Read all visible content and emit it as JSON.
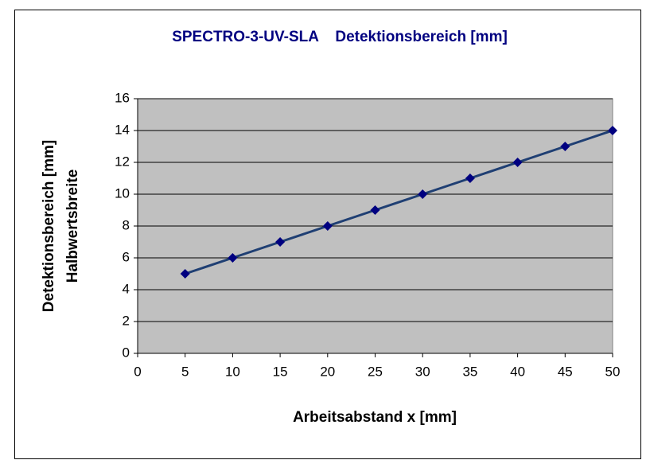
{
  "chart_data": {
    "type": "line",
    "title": "SPECTRO-3-UV-SLA    Detektionsbereich [mm]",
    "xlabel": "Arbeitsabstand x [mm]",
    "ylabel": [
      "Detektionsbereich [mm]",
      "Halbwertsbreite"
    ],
    "x": [
      5,
      10,
      15,
      20,
      25,
      30,
      35,
      40,
      45,
      50
    ],
    "series": [
      {
        "name": "Detektionsbereich",
        "color": "#1f3f73",
        "marker_color": "#000080",
        "values": [
          5,
          6,
          7,
          8,
          9,
          10,
          11,
          12,
          13,
          14
        ]
      }
    ],
    "xlim": [
      0,
      50
    ],
    "xticks": [
      0,
      5,
      10,
      15,
      20,
      25,
      30,
      35,
      40,
      45,
      50
    ],
    "ylim": [
      0,
      16
    ],
    "yticks": [
      0,
      2,
      4,
      6,
      8,
      10,
      12,
      14,
      16
    ],
    "grid": true,
    "plot_background": "#c0c0c0"
  }
}
